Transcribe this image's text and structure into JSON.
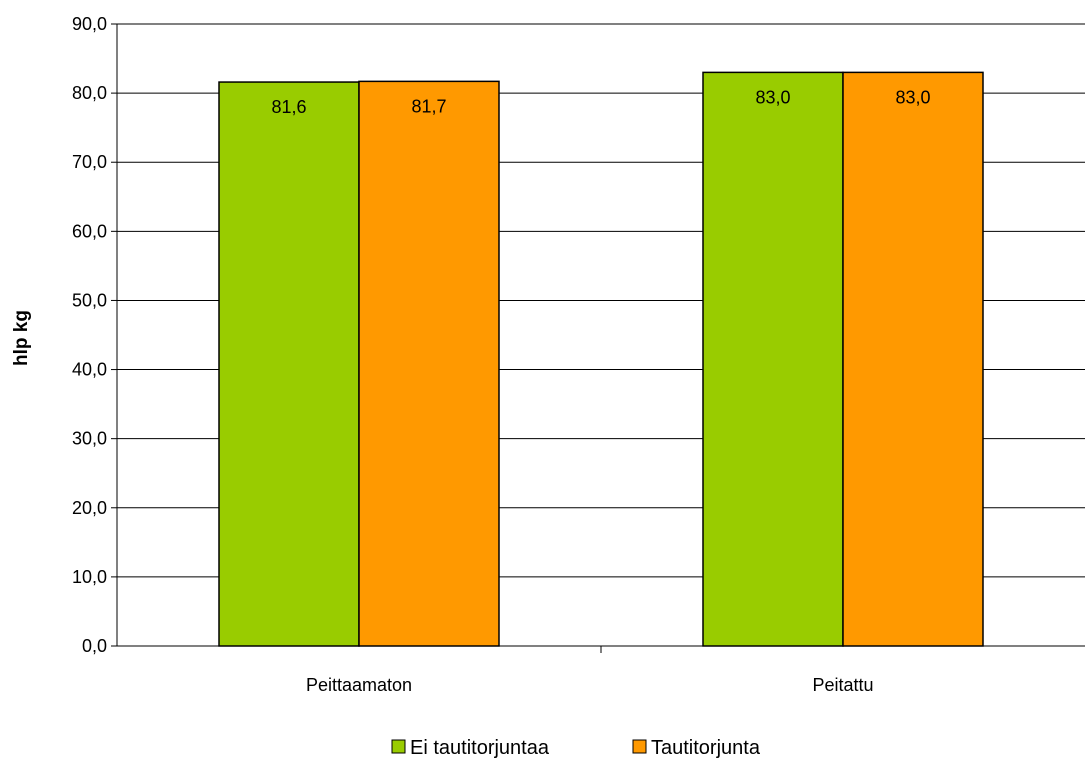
{
  "chart_data": {
    "type": "bar",
    "categories": [
      "Peittaamaton",
      "Peitattu"
    ],
    "series": [
      {
        "name": "Ei tautitorjuntaa",
        "values": [
          81.6,
          83.0
        ],
        "labels": [
          "81,6",
          "83,0"
        ],
        "color": "#99CC00"
      },
      {
        "name": "Tautitorjunta",
        "values": [
          81.7,
          83.0
        ],
        "labels": [
          "81,7",
          "83,0"
        ],
        "color": "#FF9900"
      }
    ],
    "ylabel": "hlp kg",
    "xlabel": "",
    "ylim": [
      0,
      90
    ],
    "yticks": [
      "0,0",
      "10,0",
      "20,0",
      "30,0",
      "40,0",
      "50,0",
      "60,0",
      "70,0",
      "80,0",
      "90,0"
    ],
    "grid": true,
    "legend": "bottom"
  }
}
